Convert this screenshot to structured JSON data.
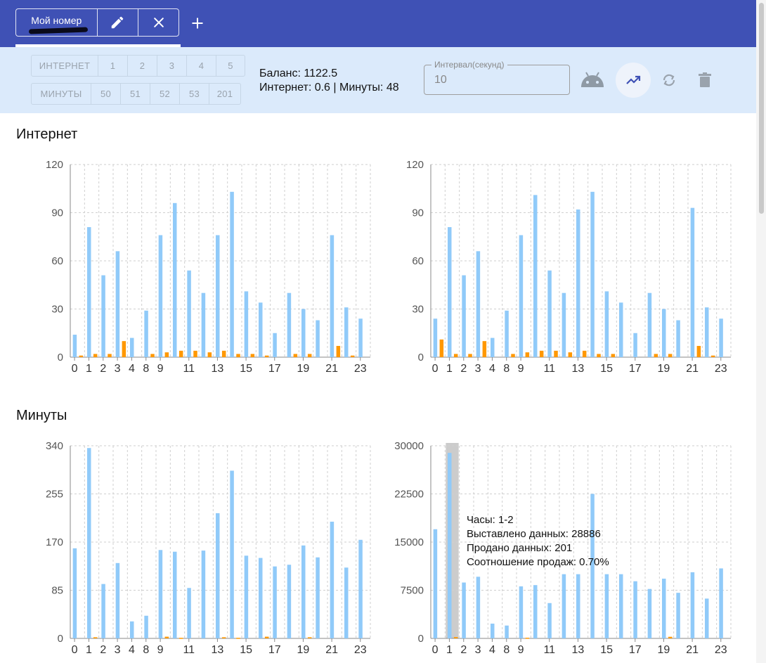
{
  "header": {
    "tab_label": "Мой номер",
    "edit_icon": "pencil-icon",
    "close_icon": "close-icon",
    "add_icon": "plus-icon",
    "bar_color": "#3f51b5"
  },
  "toolbar": {
    "internet_row": [
      "ИНТЕРНЕТ",
      "1",
      "2",
      "3",
      "4",
      "5"
    ],
    "minutes_row": [
      "МИНУТЫ",
      "50",
      "51",
      "52",
      "53",
      "201"
    ],
    "balance_line": "Баланс: 1122.5",
    "summary_line": "Интернет: 0.6 | Минуты: 48",
    "interval_label": "Интервал(секунд)",
    "interval_value": "10",
    "icons": [
      "android-icon",
      "trending-up-icon",
      "refresh-icon",
      "delete-icon"
    ]
  },
  "sections": {
    "internet_title": "Интернет",
    "minutes_title": "Минуты"
  },
  "tooltip": {
    "hours": "Часы: 1-2",
    "listed": "Выставлено данных: 28886",
    "sold": "Продано данных: 201",
    "ratio": "Соотношение продаж: 0.70%"
  },
  "colors": {
    "listed": "#90caf9",
    "sold": "#ff9800",
    "highlight": "#cccccc"
  },
  "chart_data": [
    {
      "type": "bar",
      "categories": [
        "0",
        "1",
        "2",
        "3",
        "4",
        "8",
        "9",
        "10",
        "11",
        "12",
        "13",
        "14",
        "15",
        "16",
        "17",
        "18",
        "19",
        "20",
        "21",
        "22",
        "23"
      ],
      "x_tick_labels": [
        "0",
        "1",
        "2",
        "3",
        "4",
        "8",
        "9",
        "11",
        "13",
        "15",
        "17",
        "19",
        "21",
        "23"
      ],
      "ylim": [
        0,
        120
      ],
      "yticks": [
        0,
        30,
        60,
        90,
        120
      ],
      "series": [
        {
          "values": [
            14,
            81,
            51,
            66,
            12,
            29,
            76,
            96,
            54,
            40,
            76,
            103,
            41,
            34,
            15,
            40,
            30,
            23,
            76,
            31,
            24
          ]
        },
        {
          "values": [
            1,
            2,
            2,
            10,
            0,
            2,
            3,
            4,
            4,
            3,
            4,
            2,
            2,
            1,
            0,
            2,
            2,
            0,
            7,
            1,
            0
          ]
        }
      ],
      "grid": true
    },
    {
      "type": "bar",
      "categories": [
        "0",
        "1",
        "2",
        "3",
        "4",
        "8",
        "9",
        "10",
        "11",
        "12",
        "13",
        "14",
        "15",
        "16",
        "17",
        "18",
        "19",
        "20",
        "21",
        "22",
        "23"
      ],
      "x_tick_labels": [
        "0",
        "1",
        "2",
        "3",
        "4",
        "8",
        "9",
        "11",
        "13",
        "15",
        "17",
        "19",
        "21",
        "23"
      ],
      "ylim": [
        0,
        120
      ],
      "yticks": [
        0,
        30,
        60,
        90,
        120
      ],
      "series": [
        {
          "values": [
            24,
            81,
            51,
            66,
            12,
            29,
            76,
            101,
            54,
            40,
            92,
            103,
            41,
            34,
            15,
            40,
            30,
            23,
            93,
            31,
            24
          ]
        },
        {
          "values": [
            11,
            2,
            2,
            10,
            0,
            2,
            3,
            4,
            4,
            3,
            4,
            2,
            2,
            0,
            0,
            2,
            2,
            0,
            7,
            1,
            0
          ]
        }
      ],
      "grid": true
    },
    {
      "type": "bar",
      "categories": [
        "0",
        "1",
        "2",
        "3",
        "4",
        "8",
        "9",
        "10",
        "11",
        "12",
        "13",
        "14",
        "15",
        "16",
        "17",
        "18",
        "19",
        "20",
        "21",
        "22",
        "23"
      ],
      "x_tick_labels": [
        "0",
        "1",
        "2",
        "3",
        "4",
        "8",
        "9",
        "11",
        "13",
        "15",
        "17",
        "19",
        "21",
        "23"
      ],
      "ylim": [
        0,
        340
      ],
      "yticks": [
        0,
        85,
        170,
        255,
        340
      ],
      "series": [
        {
          "values": [
            159,
            336,
            96,
            133,
            30,
            40,
            156,
            153,
            89,
            155,
            221,
            296,
            146,
            142,
            127,
            130,
            164,
            143,
            206,
            125,
            174
          ]
        },
        {
          "values": [
            0,
            2,
            0,
            0,
            0,
            0,
            3,
            1,
            0,
            0,
            2,
            1,
            0,
            3,
            0,
            0,
            2,
            0,
            0,
            0,
            0
          ]
        }
      ],
      "grid": true
    },
    {
      "type": "bar",
      "categories": [
        "0",
        "1",
        "2",
        "3",
        "4",
        "8",
        "9",
        "10",
        "11",
        "12",
        "13",
        "14",
        "15",
        "16",
        "17",
        "18",
        "19",
        "20",
        "21",
        "22",
        "23"
      ],
      "x_tick_labels": [
        "0",
        "1",
        "2",
        "3",
        "4",
        "8",
        "9",
        "11",
        "13",
        "15",
        "17",
        "19",
        "21",
        "23"
      ],
      "ylim": [
        0,
        30000
      ],
      "yticks": [
        0,
        7500,
        15000,
        22500,
        30000
      ],
      "series": [
        {
          "values": [
            17000,
            28886,
            8700,
            9600,
            2300,
            2000,
            8100,
            8300,
            5500,
            10000,
            10000,
            22500,
            10000,
            10000,
            8900,
            7700,
            9300,
            7100,
            10300,
            6200,
            10900
          ]
        },
        {
          "values": [
            0,
            201,
            0,
            0,
            0,
            0,
            100,
            0,
            0,
            0,
            0,
            0,
            0,
            0,
            0,
            0,
            250,
            0,
            0,
            0,
            0
          ]
        }
      ],
      "highlight_category": "1",
      "grid": true
    }
  ]
}
